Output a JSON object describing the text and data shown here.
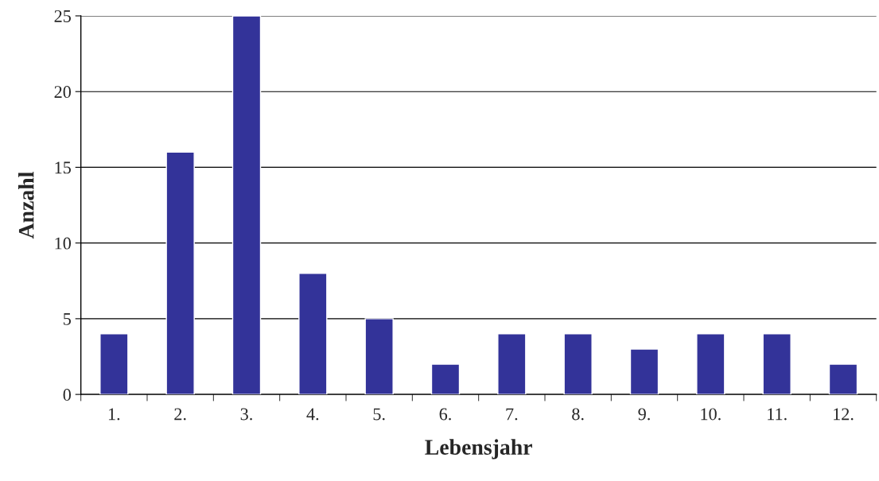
{
  "chart_data": {
    "type": "bar",
    "xlabel": "Lebensjahr",
    "ylabel": "Anzahl",
    "categories": [
      "1.",
      "2.",
      "3.",
      "4.",
      "5.",
      "6.",
      "7.",
      "8.",
      "9.",
      "10.",
      "11.",
      "12."
    ],
    "values": [
      4,
      16,
      25,
      8,
      5,
      2,
      4,
      4,
      3,
      4,
      4,
      2
    ],
    "color": "#333399",
    "ylim": [
      0,
      25
    ],
    "yticks": [
      0,
      5,
      10,
      15,
      20,
      25
    ],
    "grid": "y",
    "legend": false
  }
}
